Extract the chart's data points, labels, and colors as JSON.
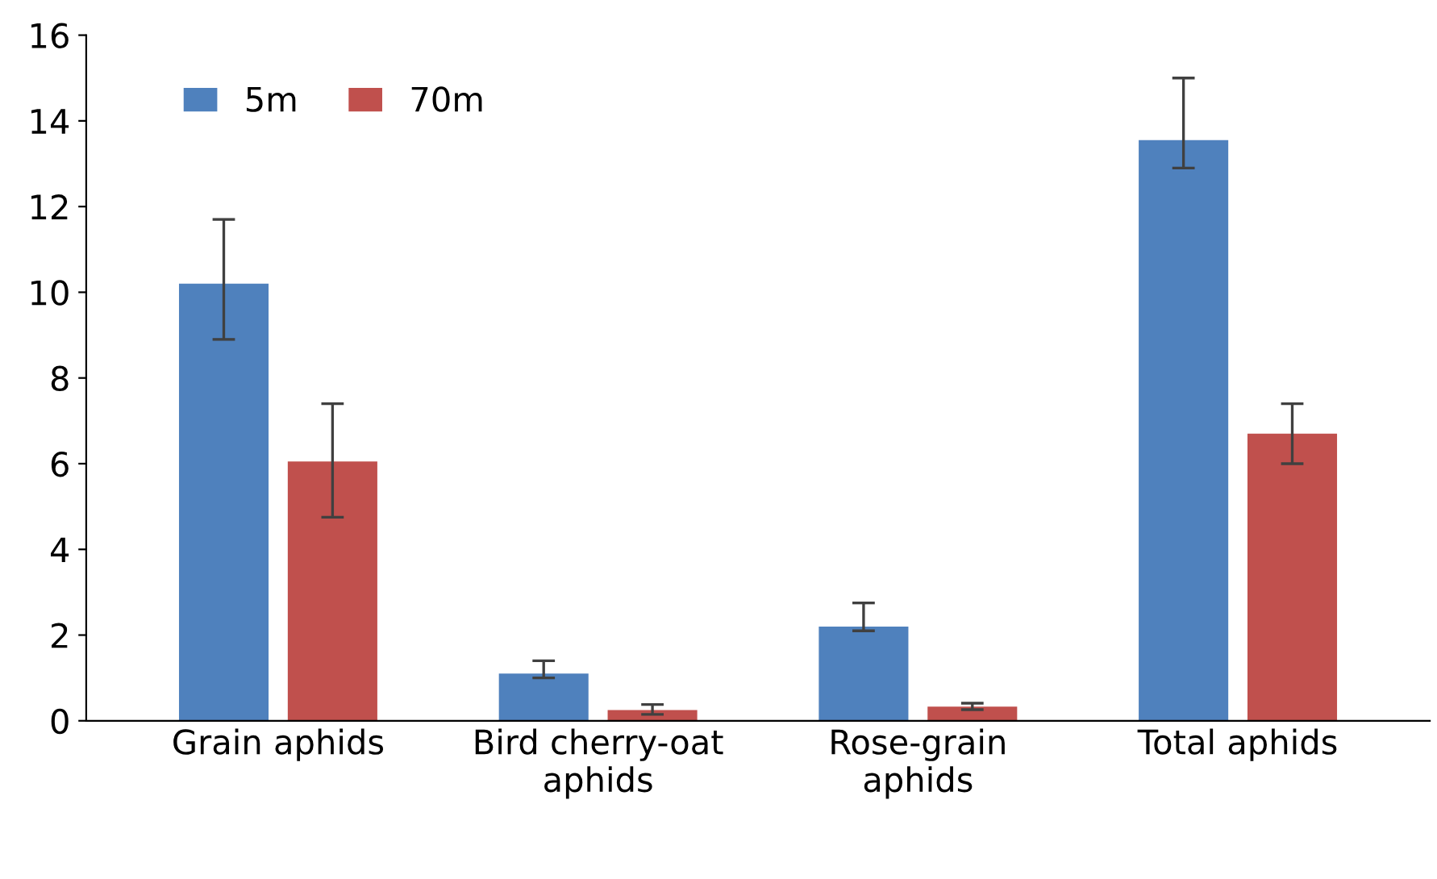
{
  "chart_data": {
    "type": "bar",
    "categories": [
      "Grain aphids",
      "Bird cherry-oat\naphids",
      "Rose-grain\naphids",
      "Total aphids"
    ],
    "series": [
      {
        "name": "5m",
        "color": "#4f81bd",
        "values": [
          10.2,
          1.1,
          2.2,
          13.55
        ],
        "errors": [
          [
            8.9,
            11.7
          ],
          [
            1.0,
            1.4
          ],
          [
            2.1,
            2.75
          ],
          [
            12.9,
            15.0
          ]
        ]
      },
      {
        "name": "70m",
        "color": "#c0504d",
        "values": [
          6.05,
          0.25,
          0.33,
          6.7
        ],
        "errors": [
          [
            4.75,
            7.4
          ],
          [
            0.15,
            0.38
          ],
          [
            0.26,
            0.41
          ],
          [
            6.0,
            7.4
          ]
        ]
      }
    ],
    "ylim": [
      0,
      16
    ],
    "yticks": [
      0,
      2,
      4,
      6,
      8,
      10,
      12,
      14,
      16
    ],
    "grid": false,
    "legend": "top left"
  }
}
